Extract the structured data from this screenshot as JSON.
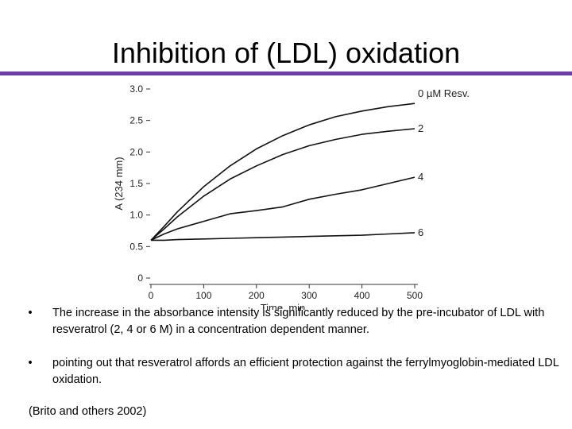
{
  "slide": {
    "title": "Inhibition of (LDL) oxidation",
    "bullets": [
      "The increase in the absorbance intensity is significantly reduced by the pre-incubator of LDL with resveratrol (2, 4 or 6 M) in a concentration dependent manner.",
      "pointing out that resveratrol affords an efficient protection against the ferrylmyoglobin-mediated LDL oxidation."
    ],
    "bullet_marker": "•",
    "citation": "(Brito and others 2002)"
  },
  "colors": {
    "accent_rule": "#6b3fa0",
    "lines": "#111111"
  },
  "chart_data": {
    "type": "line",
    "title": "",
    "xlabel": "Time, min",
    "ylabel": "A (234 mm)",
    "xlim": [
      0,
      500
    ],
    "ylim": [
      0,
      3.0
    ],
    "x_ticks": [
      "0",
      "100",
      "200",
      "300",
      "400",
      "500"
    ],
    "y_ticks": [
      "0",
      "0.5",
      "1.0",
      "1.5",
      "2.0",
      "2.5",
      "3.0"
    ],
    "grid": false,
    "x": [
      0,
      25,
      50,
      100,
      150,
      200,
      250,
      300,
      350,
      400,
      450,
      500
    ],
    "series": [
      {
        "name": "0 µM Resv.",
        "values": [
          0.6,
          0.82,
          1.05,
          1.45,
          1.78,
          2.05,
          2.26,
          2.43,
          2.56,
          2.65,
          2.72,
          2.77
        ]
      },
      {
        "name": "2",
        "values": [
          0.6,
          0.78,
          0.97,
          1.3,
          1.57,
          1.78,
          1.96,
          2.1,
          2.2,
          2.28,
          2.33,
          2.37
        ]
      },
      {
        "name": "4",
        "values": [
          0.6,
          0.7,
          0.78,
          0.9,
          1.02,
          1.07,
          1.13,
          1.25,
          1.33,
          1.4,
          1.5,
          1.6
        ]
      },
      {
        "name": "6",
        "values": [
          0.6,
          0.6,
          0.61,
          0.62,
          0.63,
          0.64,
          0.65,
          0.66,
          0.67,
          0.68,
          0.7,
          0.72
        ]
      }
    ]
  }
}
